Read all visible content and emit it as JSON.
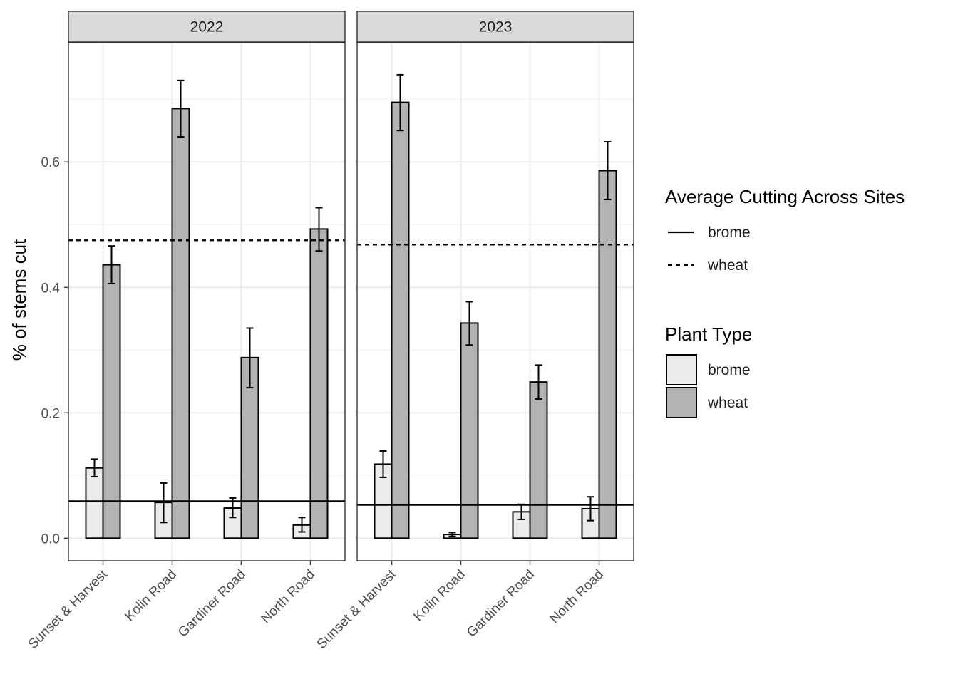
{
  "chart_data": {
    "type": "bar",
    "ylabel": "% of stems cut",
    "xlabel": "",
    "ylim": [
      -0.036,
      0.79
    ],
    "yticks": [
      0.0,
      0.2,
      0.4,
      0.6
    ],
    "ytick_labels": [
      "0.0",
      "0.2",
      "0.4",
      "0.6"
    ],
    "grid": true,
    "categories": [
      "Sunset & Harvest",
      "Kolin Road",
      "Gardiner Road",
      "North Road"
    ],
    "fill_colors": {
      "brome": "#ebebeb",
      "wheat": "#b3b3b3"
    },
    "panels": [
      {
        "label": "2022",
        "series": [
          {
            "name": "brome",
            "values": [
              0.112,
              0.057,
              0.048,
              0.021
            ],
            "err_low": [
              0.098,
              0.025,
              0.033,
              0.01
            ],
            "err_high": [
              0.126,
              0.088,
              0.064,
              0.033
            ]
          },
          {
            "name": "wheat",
            "values": [
              0.436,
              0.685,
              0.288,
              0.493
            ],
            "err_low": [
              0.406,
              0.64,
              0.24,
              0.458
            ],
            "err_high": [
              0.466,
              0.73,
              0.335,
              0.527
            ]
          }
        ],
        "avg_lines": {
          "brome": 0.059,
          "wheat": 0.475
        }
      },
      {
        "label": "2023",
        "series": [
          {
            "name": "brome",
            "values": [
              0.118,
              0.006,
              0.042,
              0.047
            ],
            "err_low": [
              0.097,
              0.003,
              0.03,
              0.028
            ],
            "err_high": [
              0.139,
              0.009,
              0.054,
              0.066
            ]
          },
          {
            "name": "wheat",
            "values": [
              0.695,
              0.343,
              0.249,
              0.586
            ],
            "err_low": [
              0.65,
              0.308,
              0.222,
              0.54
            ],
            "err_high": [
              0.739,
              0.377,
              0.276,
              0.632
            ]
          }
        ],
        "avg_lines": {
          "brome": 0.053,
          "wheat": 0.468
        }
      }
    ],
    "legends": [
      {
        "title": "Average Cutting Across Sites",
        "kind": "line",
        "items": [
          {
            "label": "brome",
            "style": "solid"
          },
          {
            "label": "wheat",
            "style": "dashed"
          }
        ]
      },
      {
        "title": "Plant Type",
        "kind": "fill",
        "items": [
          {
            "label": "brome",
            "color": "#ebebeb"
          },
          {
            "label": "wheat",
            "color": "#b3b3b3"
          }
        ]
      }
    ]
  }
}
